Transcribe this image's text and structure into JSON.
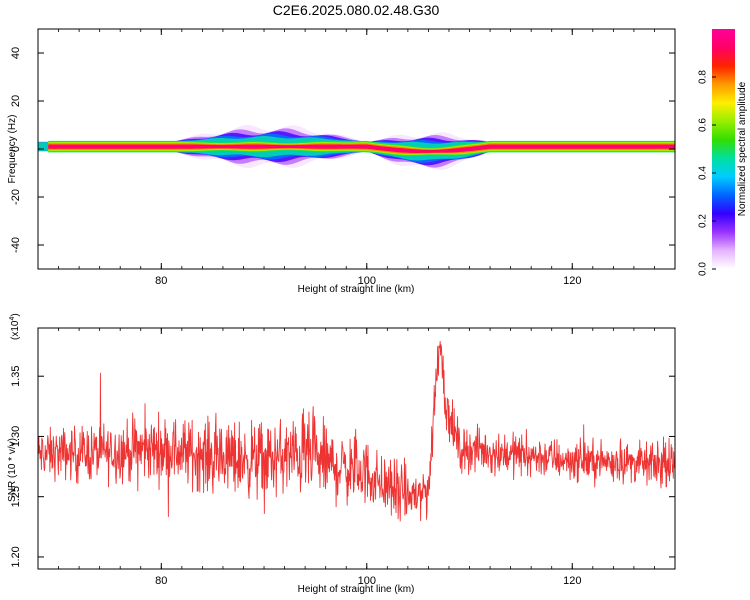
{
  "title": "C2E6.2025.080.02.48.G30",
  "chart_data": [
    {
      "type": "heatmap",
      "xlabel": "Height of straight line (km)",
      "ylabel": "Frequency (Hz)",
      "xlim": [
        68,
        130
      ],
      "ylim": [
        -50,
        50
      ],
      "xticks": [
        80,
        100,
        120
      ],
      "yticks": [
        -40,
        -20,
        0,
        20,
        40
      ],
      "colorbar": {
        "label": "Normalized spectral amplitude",
        "range": [
          0,
          1
        ],
        "ticks": [
          "0.0",
          "0.2",
          "0.4",
          "0.6",
          "0.8"
        ],
        "colors": [
          "#ffffff",
          "#e6b3ff",
          "#9933ff",
          "#3300ff",
          "#0066ff",
          "#00ccff",
          "#00e0a0",
          "#33dd00",
          "#99ee00",
          "#ffee00",
          "#ff9900",
          "#ff2200",
          "#ff0066",
          "#ff0099"
        ]
      },
      "signal": {
        "frequency_hz": 1,
        "band_halfwidth_hz": 2,
        "spread_segments": [
          {
            "x": [
              81,
              100
            ],
            "peak_halfwidth_hz": 6,
            "center_hz": 1
          },
          {
            "x": [
              100,
              112
            ],
            "peak_halfwidth_hz": 5,
            "center_hz": -1
          }
        ]
      }
    },
    {
      "type": "line",
      "xlabel": "Height of straight line (km)",
      "ylabel": "SNR (10 * v/v)",
      "y_multiplier": "(x10",
      "y_multiplier_exp": "4",
      "y_multiplier_close": ")",
      "xlim": [
        68,
        130
      ],
      "ylim": [
        1.19,
        1.39
      ],
      "xticks": [
        80,
        100,
        120
      ],
      "yticks": [
        "1.20",
        "1.25",
        "1.30",
        "1.35"
      ],
      "series": [
        {
          "color": "#ee3333",
          "baseline": [
            [
              68,
              1.285
            ],
            [
              75,
              1.287
            ],
            [
              80,
              1.29
            ],
            [
              85,
              1.283
            ],
            [
              90,
              1.28
            ],
            [
              94,
              1.285
            ],
            [
              97,
              1.275
            ],
            [
              100,
              1.27
            ],
            [
              102,
              1.258
            ],
            [
              104,
              1.25
            ],
            [
              106,
              1.255
            ],
            [
              106.8,
              1.35
            ],
            [
              107.2,
              1.385
            ],
            [
              107.6,
              1.33
            ],
            [
              109,
              1.29
            ],
            [
              115,
              1.285
            ],
            [
              120,
              1.28
            ],
            [
              125,
              1.279
            ],
            [
              130,
              1.275
            ]
          ],
          "noise_amplitude": [
            [
              68,
              0.012
            ],
            [
              75,
              0.015
            ],
            [
              85,
              0.018
            ],
            [
              95,
              0.02
            ],
            [
              100,
              0.016
            ],
            [
              106,
              0.014
            ],
            [
              110,
              0.011
            ],
            [
              120,
              0.01
            ],
            [
              130,
              0.01
            ]
          ],
          "samples": 1500
        }
      ]
    }
  ]
}
